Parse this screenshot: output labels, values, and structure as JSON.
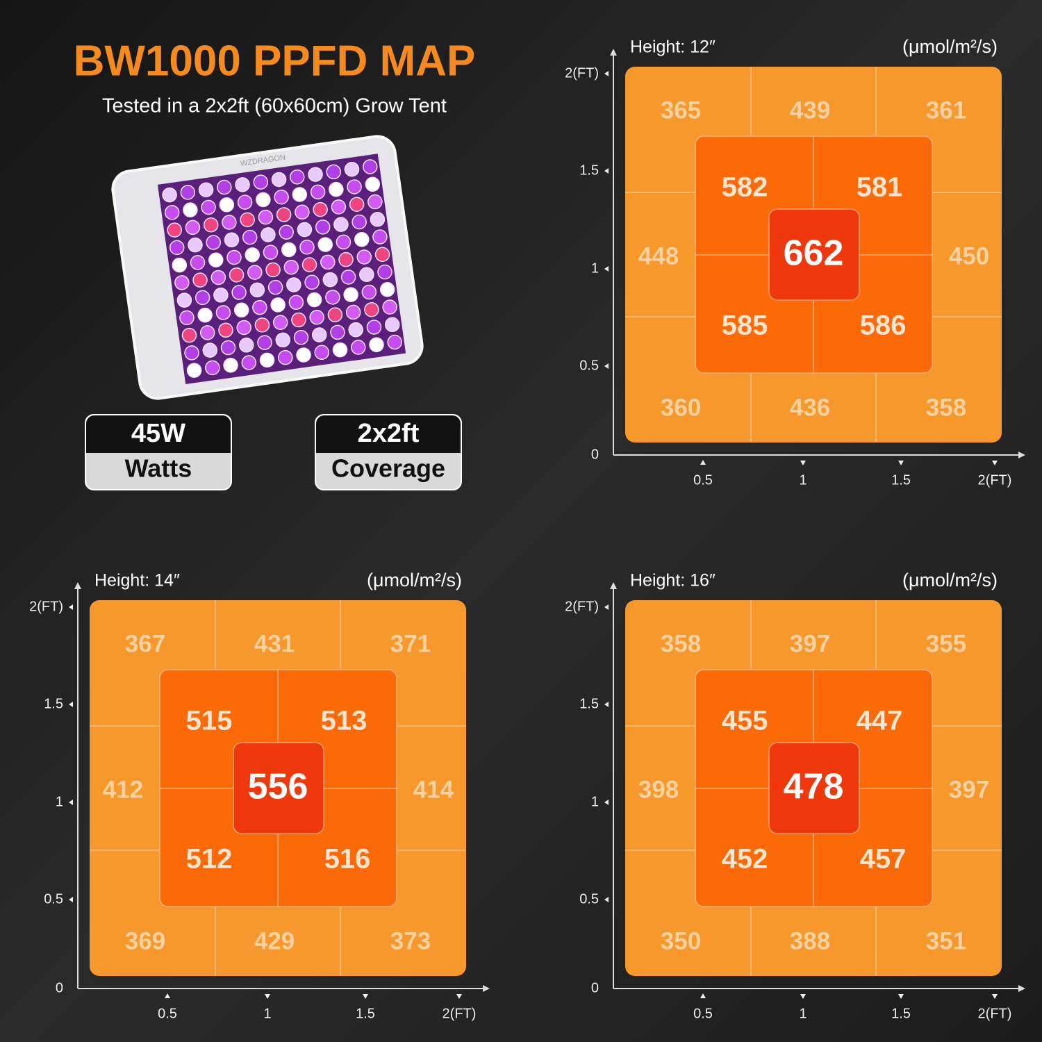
{
  "header": {
    "title": "BW1000 PPFD MAP",
    "subtitle": "Tested in a 2x2ft (60x60cm) Grow Tent",
    "lamp_brand": "WZDRAGON"
  },
  "badges": [
    {
      "value": "45W",
      "label": "Watts"
    },
    {
      "value": "2x2ft",
      "label": "Coverage"
    }
  ],
  "maps": [
    {
      "height": "Height: 12″",
      "unit": "(μmol/m²/s)",
      "outer": [
        365,
        439,
        361,
        448,
        450,
        360,
        436,
        358
      ],
      "inner": [
        582,
        581,
        585,
        586
      ],
      "center": 662,
      "y_ticks": [
        "2(FT)",
        "1.5",
        "1",
        "0.5",
        "0"
      ],
      "x_ticks": [
        "0.5",
        "1",
        "1.5",
        "2(FT)"
      ]
    },
    {
      "height": "Height: 14″",
      "unit": "(μmol/m²/s)",
      "outer": [
        367,
        431,
        371,
        412,
        414,
        369,
        429,
        373
      ],
      "inner": [
        515,
        513,
        512,
        516
      ],
      "center": 556,
      "y_ticks": [
        "2(FT)",
        "1.5",
        "1",
        "0.5",
        "0"
      ],
      "x_ticks": [
        "0.5",
        "1",
        "1.5",
        "2(FT)"
      ]
    },
    {
      "height": "Height: 16″",
      "unit": "(μmol/m²/s)",
      "outer": [
        358,
        397,
        355,
        398,
        397,
        350,
        388,
        351
      ],
      "inner": [
        455,
        447,
        452,
        457
      ],
      "center": 478,
      "y_ticks": [
        "2(FT)",
        "1.5",
        "1",
        "0.5",
        "0"
      ],
      "x_ticks": [
        "0.5",
        "1",
        "1.5",
        "2(FT)"
      ]
    }
  ]
}
